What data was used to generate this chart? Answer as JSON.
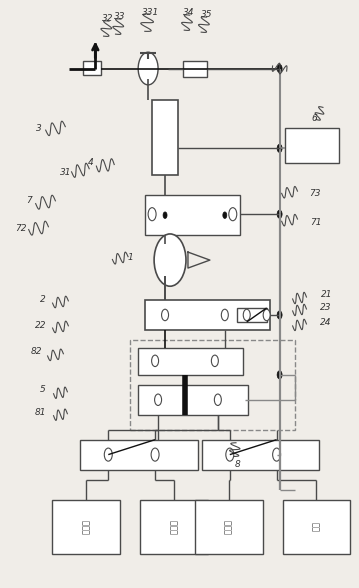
{
  "bg_color": "#f0ede8",
  "line_color": "#4a4a4a",
  "dark_line": "#111111",
  "gray_line": "#888888",
  "figsize": [
    3.59,
    5.88
  ],
  "dpi": 100,
  "bottom_labels_left": [
    "稀释液",
    "清洗液"
  ],
  "bottom_labels_right": [
    "清洗液",
    "样品"
  ],
  "label_fontsize": 6.5,
  "chinese_fontsize": 6
}
